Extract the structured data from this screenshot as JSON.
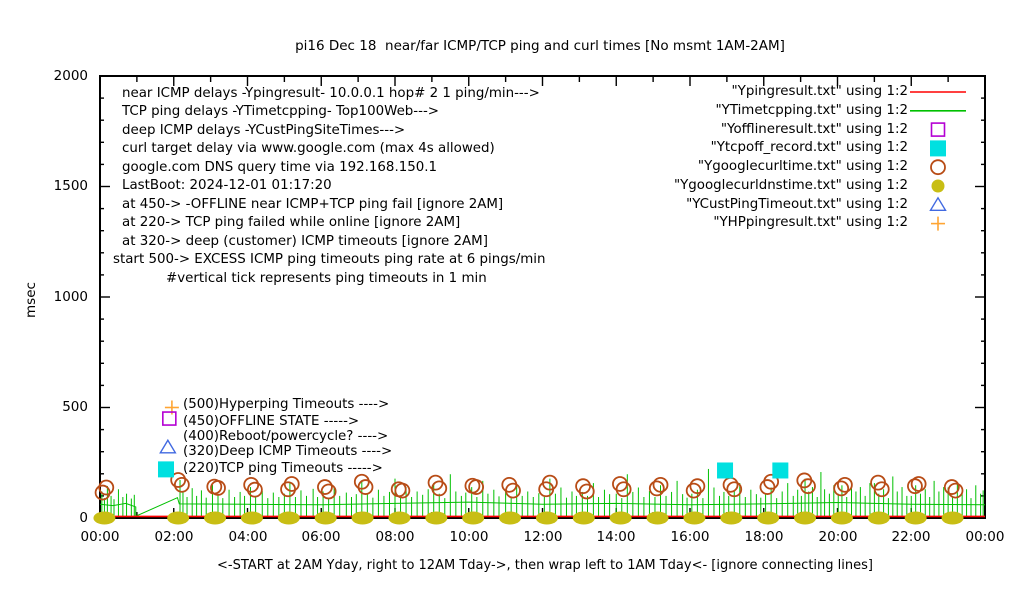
{
  "title": "pi16 Dec 18  near/far ICMP/TCP ping and curl times [No msmt 1AM-2AM]",
  "y_axis": {
    "label": "msec",
    "ticks": [
      "2000",
      "1500",
      "1000",
      "500",
      "0"
    ]
  },
  "x_axis": {
    "labels": [
      "00:00",
      "02:00",
      "04:00",
      "06:00",
      "08:00",
      "10:00",
      "12:00",
      "14:00",
      "16:00",
      "18:00",
      "20:00",
      "22:00",
      "00:00"
    ],
    "caption": "<-START at 2AM Yday, right to 12AM Tday->, then wrap left to 1AM Tday<- [ignore connecting lines]"
  },
  "info_lines": [
    "near ICMP delays -Ypingresult- 10.0.0.1 hop# 2 1 ping/min--->",
    "TCP ping delays -YTimetcpping- Top100Web--->",
    "deep ICMP delays -YCustPingSiteTimes--->",
    "curl target delay via www.google.com (max 4s allowed)",
    "google.com DNS query time via 192.168.150.1",
    "LastBoot: 2024-12-01 01:17:20",
    "at 450-> -OFFLINE near ICMP+TCP ping fail [ignore 2AM]",
    "at 220-> TCP ping failed while online [ignore 2AM]",
    "at 320-> deep (customer) ICMP timeouts [ignore 2AM]",
    "start 500-> EXCESS ICMP ping timeouts ping rate at 6 pings/min",
    "#vertical tick represents ping timeouts in 1 min"
  ],
  "annotations": [
    {
      "text": "(500)Hyperping Timeouts ---->",
      "marker": "plus",
      "color": "#ffa533",
      "h": 1.95,
      "value": 500
    },
    {
      "text": "(450)OFFLINE STATE ----->",
      "marker": "square-open",
      "color": "#b400d3",
      "h": 1.88,
      "value": 450
    },
    {
      "text": "(400)Reboot/powercycle? ---->",
      "marker": null,
      "color": null,
      "h": null,
      "value": 400
    },
    {
      "text": "(320)Deep ICMP Timeouts ---->",
      "marker": "triangle-open",
      "color": "#4169e1",
      "h": 1.84,
      "value": 320
    },
    {
      "text": "(220)TCP ping Timeouts ----->",
      "marker": "square-filled",
      "color": "#00e0e0",
      "h": 1.79,
      "value": 220
    }
  ],
  "legend": {
    "items": [
      {
        "label": "\"Ypingresult.txt\" using 1:2",
        "marker": "line",
        "color": "#ff0000"
      },
      {
        "label": "\"YTimetcpping.txt\" using 1:2",
        "marker": "line",
        "color": "#00c000"
      },
      {
        "label": "\"Yofflineresult.txt\" using 1:2",
        "marker": "square-open",
        "color": "#b400d3"
      },
      {
        "label": "\"Ytcpoff_record.txt\" using 1:2",
        "marker": "square-filled",
        "color": "#00e0e0"
      },
      {
        "label": "\"Ygooglecurltime.txt\" using 1:2",
        "marker": "circle-open",
        "color": "#b84c16"
      },
      {
        "label": "\"Ygooglecurldnstime.txt\" using 1:2",
        "marker": "circle-filled",
        "color": "#c8be14"
      },
      {
        "label": "\"YCustPingTimeout.txt\" using 1:2",
        "marker": "triangle-open",
        "color": "#4169e1"
      },
      {
        "label": "\"YHPpingresult.txt\" using 1:2",
        "marker": "plus",
        "color": "#ffa533"
      }
    ]
  },
  "chart_data": {
    "type": "line",
    "xlabel_unit": "time of day (hours)",
    "ylabel": "msec",
    "xlim": [
      0,
      24
    ],
    "ylim": [
      0,
      2000
    ],
    "x_major_step": 2,
    "x_minor_step": 1,
    "y_major_step": 500,
    "y_minor_step": 100,
    "series": [
      {
        "name": "YTimetcpping.txt",
        "style": "spiky-line",
        "color": "#00c000",
        "width": 1,
        "baseline": [
          [
            0,
            62
          ],
          [
            0.35,
            56
          ],
          [
            0.7,
            66
          ],
          [
            0.97,
            50
          ],
          [
            0.97,
            8
          ],
          [
            2.1,
            92
          ],
          [
            2.15,
            64
          ],
          [
            4,
            62
          ],
          [
            6,
            60
          ],
          [
            8,
            66
          ],
          [
            10,
            72
          ],
          [
            12,
            62
          ],
          [
            14,
            66
          ],
          [
            16,
            60
          ],
          [
            18,
            64
          ],
          [
            20,
            70
          ],
          [
            22,
            62
          ],
          [
            24,
            60
          ]
        ],
        "spikes": [
          [
            0.05,
            120
          ],
          [
            0.12,
            90
          ],
          [
            0.2,
            145
          ],
          [
            0.3,
            100
          ],
          [
            0.38,
            85
          ],
          [
            0.5,
            130
          ],
          [
            0.62,
            95
          ],
          [
            0.72,
            110
          ],
          [
            0.85,
            88
          ],
          [
            0.93,
            105
          ],
          [
            2.17,
            172
          ],
          [
            2.25,
            120
          ],
          [
            2.36,
            95
          ],
          [
            2.5,
            135
          ],
          [
            2.62,
            100
          ],
          [
            2.75,
            125
          ],
          [
            2.88,
            92
          ],
          [
            3.05,
            150
          ],
          [
            3.2,
            108
          ],
          [
            3.33,
            90
          ],
          [
            3.5,
            128
          ],
          [
            3.65,
            95
          ],
          [
            3.8,
            118
          ],
          [
            3.92,
            100
          ],
          [
            4.08,
            140
          ],
          [
            4.22,
            98
          ],
          [
            4.4,
            122
          ],
          [
            4.55,
            90
          ],
          [
            4.7,
            115
          ],
          [
            4.85,
            95
          ],
          [
            5.0,
            110
          ],
          [
            5.15,
            158
          ],
          [
            5.3,
            95
          ],
          [
            5.45,
            125
          ],
          [
            5.6,
            100
          ],
          [
            5.78,
            132
          ],
          [
            5.9,
            95
          ],
          [
            6.05,
            120
          ],
          [
            6.2,
            92
          ],
          [
            6.35,
            142
          ],
          [
            6.5,
            100
          ],
          [
            6.68,
            115
          ],
          [
            6.82,
            95
          ],
          [
            6.95,
            108
          ],
          [
            7.1,
            168
          ],
          [
            7.25,
            110
          ],
          [
            7.4,
            92
          ],
          [
            7.55,
            128
          ],
          [
            7.7,
            100
          ],
          [
            7.85,
            118
          ],
          [
            8.0,
            178
          ],
          [
            8.15,
            100
          ],
          [
            8.3,
            140
          ],
          [
            8.45,
            95
          ],
          [
            8.6,
            120
          ],
          [
            8.75,
            105
          ],
          [
            8.9,
            130
          ],
          [
            9.05,
            158
          ],
          [
            9.2,
            110
          ],
          [
            9.35,
            90
          ],
          [
            9.5,
            198
          ],
          [
            9.65,
            120
          ],
          [
            9.8,
            100
          ],
          [
            9.92,
            115
          ],
          [
            10.08,
            140
          ],
          [
            10.22,
            95
          ],
          [
            10.38,
            168
          ],
          [
            10.52,
            110
          ],
          [
            10.68,
            128
          ],
          [
            10.82,
            98
          ],
          [
            11.0,
            130
          ],
          [
            11.15,
            92
          ],
          [
            11.3,
            148
          ],
          [
            11.45,
            100
          ],
          [
            11.6,
            120
          ],
          [
            11.75,
            95
          ],
          [
            11.9,
            112
          ],
          [
            12.05,
            95
          ],
          [
            12.2,
            178
          ],
          [
            12.35,
            110
          ],
          [
            12.5,
            138
          ],
          [
            12.65,
            92
          ],
          [
            12.8,
            120
          ],
          [
            12.92,
            100
          ],
          [
            13.08,
            118
          ],
          [
            13.22,
            100
          ],
          [
            13.38,
            158
          ],
          [
            13.52,
            95
          ],
          [
            13.68,
            128
          ],
          [
            13.82,
            108
          ],
          [
            14.0,
            110
          ],
          [
            14.15,
            90
          ],
          [
            14.3,
            198
          ],
          [
            14.45,
            118
          ],
          [
            14.6,
            138
          ],
          [
            14.75,
            95
          ],
          [
            14.9,
            122
          ],
          [
            15.05,
            95
          ],
          [
            15.2,
            148
          ],
          [
            15.35,
            100
          ],
          [
            15.5,
            118
          ],
          [
            15.65,
            168
          ],
          [
            15.8,
            108
          ],
          [
            15.92,
            92
          ],
          [
            16.05,
            110
          ],
          [
            16.2,
            128
          ],
          [
            16.35,
            90
          ],
          [
            16.5,
            222
          ],
          [
            16.65,
            138
          ],
          [
            16.8,
            100
          ],
          [
            16.92,
            118
          ],
          [
            17.05,
            100
          ],
          [
            17.2,
            120
          ],
          [
            17.35,
            158
          ],
          [
            17.5,
            95
          ],
          [
            17.65,
            128
          ],
          [
            17.8,
            108
          ],
          [
            17.92,
            92
          ],
          [
            18.05,
            110
          ],
          [
            18.2,
            138
          ],
          [
            18.35,
            90
          ],
          [
            18.5,
            120
          ],
          [
            18.65,
            158
          ],
          [
            18.8,
            100
          ],
          [
            18.92,
            128
          ],
          [
            19.02,
            100
          ],
          [
            19.12,
            178
          ],
          [
            19.22,
            120
          ],
          [
            19.32,
            140
          ],
          [
            19.45,
            95
          ],
          [
            19.55,
            208
          ],
          [
            19.65,
            130
          ],
          [
            19.78,
            110
          ],
          [
            19.9,
            148
          ],
          [
            20.02,
            110
          ],
          [
            20.12,
            148
          ],
          [
            20.25,
            95
          ],
          [
            20.38,
            168
          ],
          [
            20.5,
            120
          ],
          [
            20.62,
            140
          ],
          [
            20.75,
            100
          ],
          [
            20.88,
            158
          ],
          [
            21.0,
            158
          ],
          [
            21.12,
            110
          ],
          [
            21.25,
            130
          ],
          [
            21.38,
            90
          ],
          [
            21.5,
            188
          ],
          [
            21.62,
            120
          ],
          [
            21.75,
            140
          ],
          [
            21.88,
            100
          ],
          [
            22.0,
            100
          ],
          [
            22.12,
            148
          ],
          [
            22.25,
            110
          ],
          [
            22.38,
            130
          ],
          [
            22.5,
            95
          ],
          [
            22.62,
            168
          ],
          [
            22.75,
            120
          ],
          [
            22.88,
            140
          ],
          [
            23.0,
            138
          ],
          [
            23.12,
            100
          ],
          [
            23.25,
            158
          ],
          [
            23.38,
            110
          ],
          [
            23.5,
            130
          ],
          [
            23.62,
            90
          ],
          [
            23.75,
            148
          ],
          [
            23.88,
            110
          ],
          [
            23.95,
            125
          ]
        ]
      },
      {
        "name": "Ypingresult.txt",
        "style": "line",
        "color": "#ff0000",
        "width": 1.6,
        "points": [
          [
            0,
            7
          ],
          [
            24,
            7
          ]
        ]
      },
      {
        "name": "Ygooglecurltime.txt",
        "style": "scatter",
        "marker": "circle-open",
        "color": "#b84c16",
        "points": [
          [
            0.07,
            115
          ],
          [
            0.17,
            138
          ],
          [
            2.12,
            172
          ],
          [
            2.22,
            150
          ],
          [
            3.1,
            142
          ],
          [
            3.2,
            136
          ],
          [
            4.1,
            150
          ],
          [
            4.2,
            128
          ],
          [
            5.1,
            130
          ],
          [
            5.2,
            154
          ],
          [
            6.1,
            140
          ],
          [
            6.2,
            120
          ],
          [
            7.1,
            164
          ],
          [
            7.2,
            140
          ],
          [
            8.1,
            130
          ],
          [
            8.2,
            124
          ],
          [
            9.1,
            160
          ],
          [
            9.2,
            134
          ],
          [
            10.1,
            146
          ],
          [
            10.2,
            140
          ],
          [
            11.1,
            150
          ],
          [
            11.2,
            124
          ],
          [
            12.1,
            130
          ],
          [
            12.2,
            160
          ],
          [
            13.1,
            144
          ],
          [
            13.2,
            120
          ],
          [
            14.1,
            154
          ],
          [
            14.2,
            130
          ],
          [
            15.1,
            134
          ],
          [
            15.2,
            150
          ],
          [
            16.1,
            124
          ],
          [
            16.2,
            144
          ],
          [
            17.1,
            150
          ],
          [
            17.2,
            130
          ],
          [
            18.1,
            140
          ],
          [
            18.2,
            164
          ],
          [
            19.1,
            170
          ],
          [
            19.2,
            144
          ],
          [
            20.1,
            134
          ],
          [
            20.2,
            150
          ],
          [
            21.1,
            160
          ],
          [
            21.2,
            130
          ],
          [
            22.1,
            144
          ],
          [
            22.2,
            154
          ],
          [
            23.1,
            140
          ],
          [
            23.2,
            124
          ]
        ]
      },
      {
        "name": "Ygooglecurldnstime.txt",
        "style": "scatter",
        "marker": "ellipse-filled",
        "color": "#c8be14",
        "points": [
          [
            0.12,
            0
          ],
          [
            2.12,
            0
          ],
          [
            3.12,
            0
          ],
          [
            4.12,
            0
          ],
          [
            5.12,
            0
          ],
          [
            6.12,
            0
          ],
          [
            7.12,
            0
          ],
          [
            8.12,
            0
          ],
          [
            9.12,
            0
          ],
          [
            10.12,
            0
          ],
          [
            11.12,
            0
          ],
          [
            12.12,
            0
          ],
          [
            13.12,
            0
          ],
          [
            14.12,
            0
          ],
          [
            15.12,
            0
          ],
          [
            16.12,
            0
          ],
          [
            17.12,
            0
          ],
          [
            18.12,
            0
          ],
          [
            19.12,
            0
          ],
          [
            20.12,
            0
          ],
          [
            21.12,
            0
          ],
          [
            22.12,
            0
          ],
          [
            23.12,
            0
          ]
        ]
      },
      {
        "name": "Ytcpoff_record.txt",
        "style": "scatter",
        "marker": "square-filled",
        "color": "#00e0e0",
        "points": [
          [
            16.95,
            215
          ],
          [
            18.45,
            215
          ]
        ]
      },
      {
        "name": "Yofflineresult.txt",
        "style": "scatter",
        "marker": "square-open",
        "color": "#b400d3",
        "points": []
      },
      {
        "name": "YCustPingTimeout.txt",
        "style": "scatter",
        "marker": "triangle-open",
        "color": "#4169e1",
        "points": []
      },
      {
        "name": "YHPpingresult.txt",
        "style": "scatter",
        "marker": "plus",
        "color": "#ffa533",
        "points": []
      }
    ]
  }
}
